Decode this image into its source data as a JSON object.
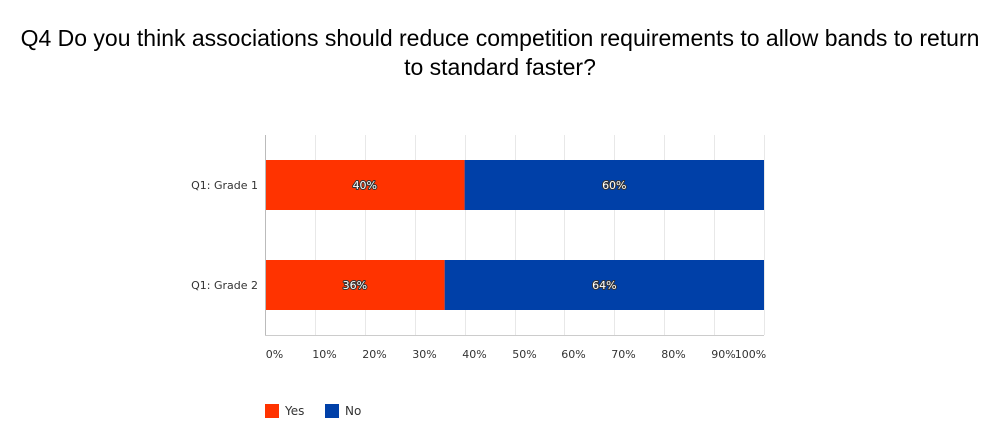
{
  "chart_data": {
    "type": "bar",
    "orientation": "horizontal",
    "stacked": true,
    "title": "Q4 Do you think associations should reduce competition requirements to allow bands to return to standard faster?",
    "categories": [
      "Q1: Grade 1",
      "Q1: Grade 2"
    ],
    "series": [
      {
        "name": "Yes",
        "color": "#ff3300",
        "values": [
          40,
          36
        ],
        "labels": [
          "40%",
          "36%"
        ]
      },
      {
        "name": "No",
        "color": "#0040a8",
        "values": [
          60,
          64
        ],
        "labels": [
          "60%",
          "64%"
        ]
      }
    ],
    "xlim": [
      0,
      100
    ],
    "xticks": [
      {
        "value": 0,
        "label": "0%"
      },
      {
        "value": 10,
        "label": "10%"
      },
      {
        "value": 20,
        "label": "20%"
      },
      {
        "value": 30,
        "label": "30%"
      },
      {
        "value": 40,
        "label": "40%"
      },
      {
        "value": 50,
        "label": "50%"
      },
      {
        "value": 60,
        "label": "60%"
      },
      {
        "value": 70,
        "label": "70%"
      },
      {
        "value": 80,
        "label": "80%"
      },
      {
        "value": 90,
        "label": "90%"
      },
      {
        "value": 100,
        "label": "100%"
      }
    ],
    "grid": true,
    "legend_position": "bottom-left"
  }
}
